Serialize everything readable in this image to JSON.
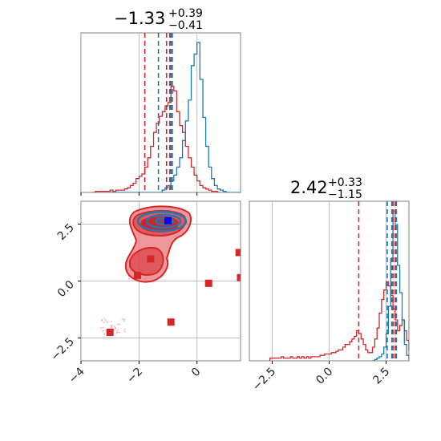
{
  "chart_data": {
    "type": "corner",
    "params": [
      {
        "title": {
          "main": "−1.33",
          "sup": "+0.39",
          "sub": "−0.41"
        },
        "range": [
          -4.0,
          1.5
        ],
        "ticks": [
          {
            "value": -4,
            "label": "−4"
          },
          {
            "value": -2,
            "label": "−2"
          },
          {
            "value": 0,
            "label": "0"
          }
        ],
        "quantiles": {
          "blue": [
            -1.33,
            -0.94,
            -0.85
          ],
          "red": [
            -1.8,
            -1.05,
            -0.9
          ]
        },
        "histograms": {
          "bin_width": 0.1,
          "blue": {
            "start": -3.0,
            "values": [
              0,
              0,
              0,
              0,
              0,
              0,
              0,
              0,
              0,
              0,
              0,
              0,
              0,
              0,
              0,
              0,
              0,
              0,
              2,
              4,
              6,
              10,
              15,
              22,
              30,
              45,
              62,
              80,
              110,
              120,
              130,
              98,
              65,
              40,
              22,
              12,
              6,
              3,
              2,
              1,
              0,
              0,
              0,
              0,
              0
            ]
          },
          "red": {
            "start": -3.6,
            "values": [
              0,
              1,
              1,
              1,
              1,
              1,
              2,
              1,
              2,
              2,
              2,
              3,
              4,
              6,
              8,
              12,
              14,
              16,
              22,
              30,
              40,
              52,
              60,
              66,
              70,
              75,
              78,
              92,
              88,
              70,
              58,
              52,
              40,
              30,
              22,
              15,
              10,
              6,
              4,
              3,
              2,
              1,
              1,
              0
            ]
          }
        }
      },
      {
        "title": {
          "main": "2.42",
          "sup": "+0.33",
          "sub": "−1.15"
        },
        "range": [
          -3.5,
          3.5
        ],
        "ticks": [
          {
            "value": -2.5,
            "label": "−2.5"
          },
          {
            "value": 0.0,
            "label": "0.0"
          },
          {
            "value": 2.5,
            "label": "2.5"
          }
        ],
        "quantiles": {
          "blue": [
            2.55,
            2.75,
            2.95
          ],
          "red": [
            1.3,
            2.8,
            2.9
          ]
        },
        "histograms": {
          "bin_width": 0.1,
          "blue": {
            "start": 1.9,
            "values": [
              0,
              1,
              2,
              3,
              5,
              10,
              20,
              40,
              75,
              110,
              100,
              70,
              50,
              30,
              12,
              4,
              1
            ]
          },
          "red": {
            "start": -2.6,
            "values": [
              2,
              2,
              2,
              2,
              2,
              3,
              2,
              2,
              2,
              3,
              2,
              2,
              3,
              2,
              3,
              2,
              3,
              2,
              3,
              3,
              3,
              3,
              4,
              4,
              5,
              5,
              5,
              6,
              6,
              7,
              8,
              8,
              10,
              12,
              12,
              14,
              16,
              18,
              22,
              20,
              16,
              12,
              8,
              6,
              6,
              10,
              16,
              24,
              35,
              45,
              52,
              58,
              55,
              48,
              38,
              30,
              22,
              26,
              30,
              22,
              15,
              8,
              4,
              2
            ]
          }
        }
      }
    ],
    "scatter_2d": {
      "red_points": [
        [
          -3.0,
          -2.25
        ],
        [
          -1.6,
          0.97
        ],
        [
          -2.05,
          0.25
        ],
        [
          -0.9,
          -1.8
        ],
        [
          0.4,
          -0.1
        ],
        [
          1.45,
          1.25
        ],
        [
          1.5,
          0.15
        ]
      ],
      "blue_point": [
        -1.0,
        2.65
      ],
      "red_contour_levels": 3,
      "blue_contour_levels": 3
    },
    "colors": {
      "blue": "#1f77b4",
      "red": "#d62728",
      "grid": "#b0b0b0",
      "axis": "#808080",
      "fill_red": "#e8767a",
      "point_pink": "#f2b8c6"
    }
  }
}
